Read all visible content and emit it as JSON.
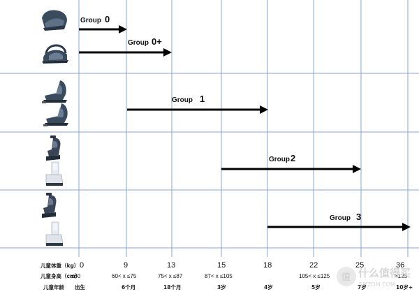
{
  "weights": [
    "0",
    "9",
    "13",
    "15",
    "18",
    "22",
    "25",
    "36"
  ],
  "heights": [
    "≤60",
    "60< x ≤75",
    "75< x ≤87",
    "87< x ≤105",
    "105< x ≤125",
    ">125"
  ],
  "ages": [
    "出生",
    "6个月",
    "18个月",
    "3岁",
    "4岁",
    "5岁",
    "7岁",
    "10岁+"
  ],
  "row_labels": {
    "weight": "儿童体重（kg）",
    "height": "儿童身高（cm）",
    "age": "儿童年龄"
  },
  "groups": [
    {
      "label": "Group",
      "num": "0"
    },
    {
      "label": "Group",
      "num": "0+"
    },
    {
      "label": "Group",
      "num": "1"
    },
    {
      "label": "Group",
      "num": "2"
    },
    {
      "label": "Group",
      "num": "3"
    }
  ],
  "watermark": {
    "text": "什么值得买",
    "sub": "SMZDM.COM",
    "badge": "值"
  },
  "colors": {
    "grid": "#8aa3cf",
    "arrow": "#000000",
    "seat_dark": "#3e4f62",
    "seat_light": "#dfe3ea"
  },
  "icons": [
    "car-seat-icon"
  ]
}
